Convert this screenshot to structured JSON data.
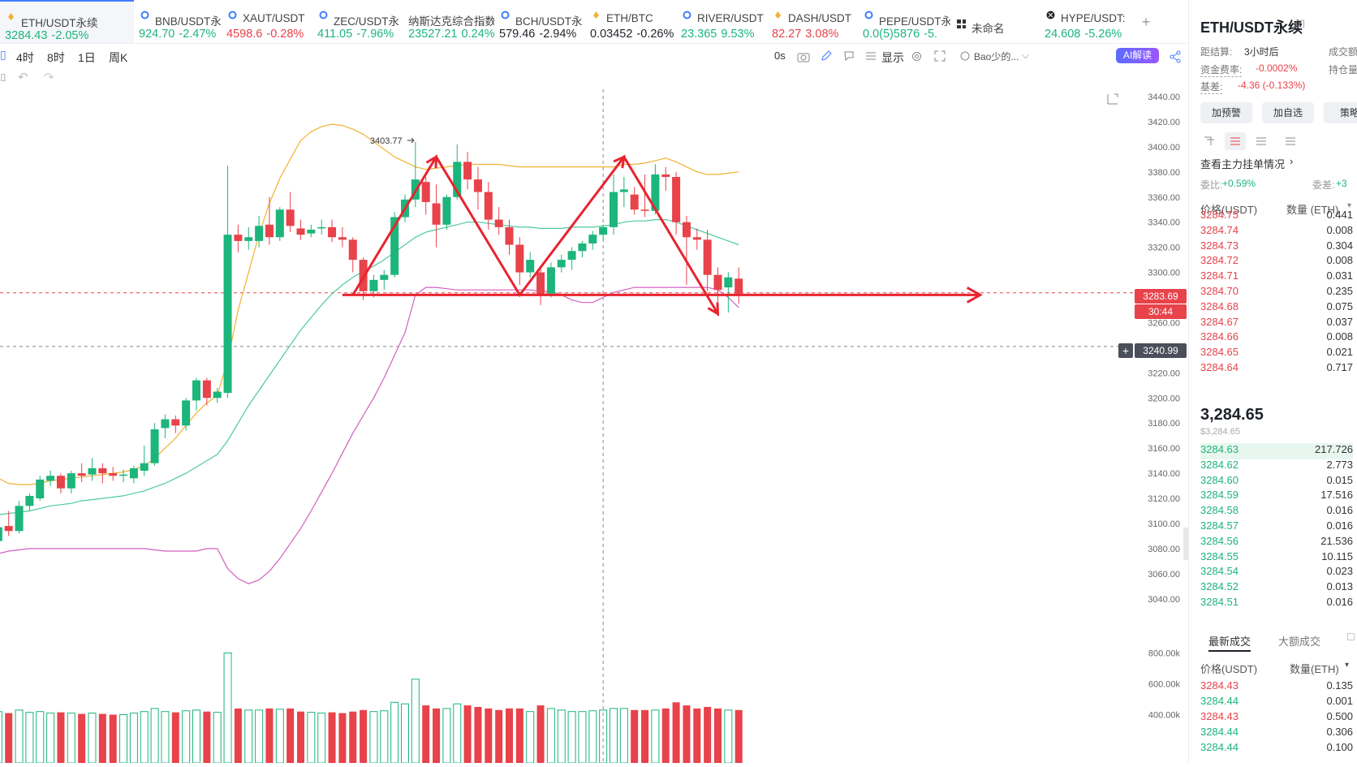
{
  "tabs": [
    {
      "name": "ETH/USDT永续",
      "price": "3284.43",
      "change": "-2.05%",
      "price_color": "green",
      "change_color": "green",
      "icon": "hot-icon",
      "active": true
    },
    {
      "name": "BNB/USDT永",
      "price": "924.70",
      "change": "-2.47%",
      "price_color": "green",
      "change_color": "green",
      "icon": "swap-icon"
    },
    {
      "name": "XAUT/USDT",
      "price": "4598.6",
      "change": "-0.28%",
      "price_color": "red",
      "change_color": "red",
      "icon": "swap-icon"
    },
    {
      "name": "ZEC/USDT永",
      "price": "411.05",
      "change": "-7.96%",
      "price_color": "green",
      "change_color": "green",
      "icon": "swap-icon"
    },
    {
      "name": "纳斯达克综合指数",
      "price": "23527.21",
      "change": "0.24%",
      "price_color": "green",
      "change_color": "green",
      "icon": ""
    },
    {
      "name": "BCH/USDT永",
      "price": "579.46",
      "change": "-2.94%",
      "price_color": "dark",
      "change_color": "dark",
      "icon": "swap-icon"
    },
    {
      "name": "ETH/BTC",
      "price": "0.03452",
      "change": "-0.26%",
      "price_color": "dark",
      "change_color": "dark",
      "icon": "hot-icon"
    },
    {
      "name": "RIVER/USDT",
      "price": "23.365",
      "change": "9.53%",
      "price_color": "green",
      "change_color": "green",
      "icon": "swap-icon"
    },
    {
      "name": "DASH/USDT",
      "price": "82.27",
      "change": "3.08%",
      "price_color": "red",
      "change_color": "red",
      "icon": "hot-icon"
    },
    {
      "name": "PEPE/USDT永",
      "price": "0.0(5)5876",
      "change": "-5.",
      "price_color": "green",
      "change_color": "green",
      "icon": "swap-icon"
    },
    {
      "name": "未命名",
      "price": "",
      "change": "",
      "price_color": "dark",
      "change_color": "dark",
      "icon": "grid-icon"
    },
    {
      "name": "HYPE/USDT:",
      "price": "24.608",
      "change": "-5.26%",
      "price_color": "green",
      "change_color": "green",
      "icon": "hype-icon"
    }
  ],
  "toolbar": {
    "intervals": [
      "4时",
      "8时",
      "1日",
      "周K"
    ],
    "countdown": "0s",
    "display_label": "显示",
    "user_label": "Bao少的...",
    "ai_label": "AI解读"
  },
  "chart_data": {
    "type": "candlestick",
    "y_ticks": [
      "3440.00",
      "3420.00",
      "3400.00",
      "3380.00",
      "3360.00",
      "3340.00",
      "3320.00",
      "3300.00",
      "3280.00",
      "3260.00",
      "3240.00",
      "3220.00",
      "3200.00",
      "3180.00",
      "3160.00",
      "3140.00",
      "3120.00",
      "3100.00",
      "3080.00",
      "3060.00",
      "3040.00"
    ],
    "ylim": [
      3025,
      3440
    ],
    "volume_ticks": [
      "800.00k",
      "600.00k",
      "400.00k"
    ],
    "volume_lim": [
      350,
      850
    ],
    "current_price": "3283.69",
    "countdown": "30:44",
    "crosshair_price": "3240.99",
    "high_label": "3403.77",
    "high_value": 3403.77,
    "neckline_price": 3282,
    "candles": [
      {
        "o": 3100,
        "h": 3112,
        "c": 3088,
        "l": 3082,
        "v": 430
      },
      {
        "o": 3086,
        "h": 3106,
        "c": 3097,
        "l": 3084,
        "v": 420
      },
      {
        "o": 3098,
        "h": 3110,
        "c": 3094,
        "l": 3090,
        "v": 410
      },
      {
        "o": 3094,
        "h": 3118,
        "c": 3114,
        "l": 3092,
        "v": 430
      },
      {
        "o": 3114,
        "h": 3124,
        "c": 3122,
        "l": 3110,
        "v": 415
      },
      {
        "o": 3120,
        "h": 3138,
        "c": 3135,
        "l": 3118,
        "v": 420
      },
      {
        "o": 3134,
        "h": 3142,
        "c": 3138,
        "l": 3130,
        "v": 410
      },
      {
        "o": 3138,
        "h": 3140,
        "c": 3128,
        "l": 3124,
        "v": 415
      },
      {
        "o": 3128,
        "h": 3142,
        "c": 3140,
        "l": 3124,
        "v": 410
      },
      {
        "o": 3140,
        "h": 3148,
        "c": 3138,
        "l": 3133,
        "v": 405
      },
      {
        "o": 3139,
        "h": 3152,
        "c": 3144,
        "l": 3134,
        "v": 410
      },
      {
        "o": 3144,
        "h": 3148,
        "c": 3140,
        "l": 3132,
        "v": 405
      },
      {
        "o": 3140,
        "h": 3145,
        "c": 3138,
        "l": 3134,
        "v": 400
      },
      {
        "o": 3138,
        "h": 3143,
        "c": 3139,
        "l": 3133,
        "v": 400
      },
      {
        "o": 3136,
        "h": 3146,
        "c": 3144,
        "l": 3132,
        "v": 410
      },
      {
        "o": 3142,
        "h": 3162,
        "c": 3148,
        "l": 3138,
        "v": 420
      },
      {
        "o": 3148,
        "h": 3180,
        "c": 3175,
        "l": 3146,
        "v": 440
      },
      {
        "o": 3176,
        "h": 3187,
        "c": 3183,
        "l": 3168,
        "v": 420
      },
      {
        "o": 3183,
        "h": 3186,
        "c": 3178,
        "l": 3172,
        "v": 415
      },
      {
        "o": 3178,
        "h": 3200,
        "c": 3198,
        "l": 3174,
        "v": 425
      },
      {
        "o": 3198,
        "h": 3216,
        "c": 3214,
        "l": 3190,
        "v": 430
      },
      {
        "o": 3214,
        "h": 3216,
        "c": 3200,
        "l": 3194,
        "v": 420
      },
      {
        "o": 3200,
        "h": 3208,
        "c": 3205,
        "l": 3196,
        "v": 415
      },
      {
        "o": 3204,
        "h": 3385,
        "c": 3330,
        "l": 3200,
        "v": 800
      },
      {
        "o": 3330,
        "h": 3338,
        "c": 3325,
        "l": 3316,
        "v": 440
      },
      {
        "o": 3325,
        "h": 3336,
        "c": 3328,
        "l": 3318,
        "v": 430
      },
      {
        "o": 3325,
        "h": 3345,
        "c": 3337,
        "l": 3320,
        "v": 430
      },
      {
        "o": 3338,
        "h": 3360,
        "c": 3328,
        "l": 3322,
        "v": 440
      },
      {
        "o": 3328,
        "h": 3352,
        "c": 3350,
        "l": 3325,
        "v": 435
      },
      {
        "o": 3350,
        "h": 3364,
        "c": 3337,
        "l": 3332,
        "v": 440
      },
      {
        "o": 3335,
        "h": 3342,
        "c": 3330,
        "l": 3326,
        "v": 420
      },
      {
        "o": 3331,
        "h": 3338,
        "c": 3334,
        "l": 3328,
        "v": 415
      },
      {
        "o": 3335,
        "h": 3342,
        "c": 3336,
        "l": 3330,
        "v": 410
      },
      {
        "o": 3336,
        "h": 3342,
        "c": 3328,
        "l": 3324,
        "v": 415
      },
      {
        "o": 3328,
        "h": 3336,
        "c": 3326,
        "l": 3320,
        "v": 410
      },
      {
        "o": 3326,
        "h": 3328,
        "c": 3310,
        "l": 3300,
        "v": 420
      },
      {
        "o": 3310,
        "h": 3312,
        "c": 3285,
        "l": 3278,
        "v": 430
      },
      {
        "o": 3285,
        "h": 3298,
        "c": 3294,
        "l": 3280,
        "v": 420
      },
      {
        "o": 3294,
        "h": 3302,
        "c": 3298,
        "l": 3286,
        "v": 425
      },
      {
        "o": 3298,
        "h": 3348,
        "c": 3344,
        "l": 3296,
        "v": 480
      },
      {
        "o": 3344,
        "h": 3362,
        "c": 3358,
        "l": 3340,
        "v": 470
      },
      {
        "o": 3358,
        "h": 3404,
        "c": 3374,
        "l": 3352,
        "v": 630
      },
      {
        "o": 3372,
        "h": 3376,
        "c": 3356,
        "l": 3346,
        "v": 460
      },
      {
        "o": 3355,
        "h": 3370,
        "c": 3338,
        "l": 3320,
        "v": 440
      },
      {
        "o": 3338,
        "h": 3362,
        "c": 3360,
        "l": 3334,
        "v": 440
      },
      {
        "o": 3360,
        "h": 3402,
        "c": 3388,
        "l": 3358,
        "v": 470
      },
      {
        "o": 3388,
        "h": 3396,
        "c": 3374,
        "l": 3366,
        "v": 460
      },
      {
        "o": 3374,
        "h": 3384,
        "c": 3364,
        "l": 3350,
        "v": 450
      },
      {
        "o": 3364,
        "h": 3372,
        "c": 3342,
        "l": 3334,
        "v": 440
      },
      {
        "o": 3342,
        "h": 3352,
        "c": 3336,
        "l": 3330,
        "v": 430
      },
      {
        "o": 3336,
        "h": 3342,
        "c": 3322,
        "l": 3314,
        "v": 440
      },
      {
        "o": 3322,
        "h": 3328,
        "c": 3300,
        "l": 3290,
        "v": 440
      },
      {
        "o": 3300,
        "h": 3316,
        "c": 3310,
        "l": 3296,
        "v": 420
      },
      {
        "o": 3300,
        "h": 3304,
        "c": 3282,
        "l": 3274,
        "v": 460
      },
      {
        "o": 3283,
        "h": 3308,
        "c": 3304,
        "l": 3280,
        "v": 440
      },
      {
        "o": 3304,
        "h": 3314,
        "c": 3310,
        "l": 3300,
        "v": 430
      },
      {
        "o": 3310,
        "h": 3320,
        "c": 3317,
        "l": 3302,
        "v": 420
      },
      {
        "o": 3317,
        "h": 3325,
        "c": 3323,
        "l": 3312,
        "v": 420
      },
      {
        "o": 3323,
        "h": 3333,
        "c": 3330,
        "l": 3318,
        "v": 425
      },
      {
        "o": 3330,
        "h": 3338,
        "c": 3336,
        "l": 3326,
        "v": 430
      },
      {
        "o": 3336,
        "h": 3378,
        "c": 3364,
        "l": 3330,
        "v": 440
      },
      {
        "o": 3364,
        "h": 3376,
        "c": 3366,
        "l": 3352,
        "v": 440
      },
      {
        "o": 3362,
        "h": 3368,
        "c": 3350,
        "l": 3346,
        "v": 430
      },
      {
        "o": 3350,
        "h": 3378,
        "c": 3349,
        "l": 3344,
        "v": 430
      },
      {
        "o": 3349,
        "h": 3386,
        "c": 3378,
        "l": 3346,
        "v": 430
      },
      {
        "o": 3378,
        "h": 3384,
        "c": 3376,
        "l": 3365,
        "v": 440
      },
      {
        "o": 3376,
        "h": 3380,
        "c": 3340,
        "l": 3330,
        "v": 480
      },
      {
        "o": 3340,
        "h": 3345,
        "c": 3328,
        "l": 3290,
        "v": 460
      },
      {
        "o": 3328,
        "h": 3335,
        "c": 3326,
        "l": 3318,
        "v": 440
      },
      {
        "o": 3326,
        "h": 3334,
        "c": 3298,
        "l": 3285,
        "v": 450
      },
      {
        "o": 3298,
        "h": 3304,
        "c": 3286,
        "l": 3265,
        "v": 440
      },
      {
        "o": 3288,
        "h": 3300,
        "c": 3296,
        "l": 3268,
        "v": 430
      },
      {
        "o": 3295,
        "h": 3304,
        "c": 3283,
        "l": 3275,
        "v": 430
      }
    ],
    "bollinger": {
      "upper": [
        3142,
        3136,
        3132,
        3131,
        3131,
        3132,
        3134,
        3135,
        3136,
        3137,
        3138,
        3139,
        3140,
        3141,
        3143,
        3146,
        3152,
        3160,
        3168,
        3178,
        3188,
        3196,
        3202,
        3230,
        3270,
        3300,
        3330,
        3355,
        3375,
        3390,
        3405,
        3412,
        3416,
        3418,
        3417,
        3414,
        3410,
        3404,
        3398,
        3392,
        3388,
        3384,
        3382,
        3383,
        3384,
        3385,
        3386,
        3386,
        3386,
        3386,
        3385,
        3384,
        3384,
        3384,
        3384,
        3384,
        3384,
        3384,
        3384,
        3384,
        3384,
        3386,
        3386,
        3387,
        3389,
        3391,
        3388,
        3384,
        3380,
        3378,
        3378,
        3379,
        3380
      ],
      "middle": [
        3106,
        3107,
        3108,
        3109,
        3110,
        3112,
        3114,
        3115,
        3116,
        3118,
        3119,
        3120,
        3121,
        3122,
        3124,
        3126,
        3129,
        3132,
        3136,
        3140,
        3145,
        3150,
        3155,
        3166,
        3180,
        3194,
        3206,
        3218,
        3230,
        3242,
        3254,
        3264,
        3274,
        3283,
        3290,
        3296,
        3301,
        3305,
        3310,
        3316,
        3322,
        3328,
        3332,
        3334,
        3336,
        3338,
        3340,
        3340,
        3339,
        3338,
        3337,
        3336,
        3336,
        3335,
        3335,
        3335,
        3336,
        3336,
        3336,
        3337,
        3338,
        3340,
        3341,
        3341,
        3342,
        3342,
        3340,
        3337,
        3334,
        3331,
        3328,
        3325,
        3322
      ],
      "lower": [
        3070,
        3076,
        3078,
        3079,
        3080,
        3080,
        3080,
        3080,
        3080,
        3080,
        3080,
        3080,
        3080,
        3080,
        3080,
        3080,
        3079,
        3078,
        3078,
        3078,
        3078,
        3080,
        3080,
        3064,
        3056,
        3052,
        3055,
        3062,
        3072,
        3084,
        3096,
        3110,
        3125,
        3140,
        3156,
        3172,
        3186,
        3200,
        3216,
        3234,
        3252,
        3282,
        3288,
        3288,
        3287,
        3286,
        3286,
        3286,
        3286,
        3286,
        3286,
        3286,
        3286,
        3285,
        3285,
        3282,
        3278,
        3276,
        3276,
        3280,
        3284,
        3286,
        3288,
        3288,
        3288,
        3288,
        3288,
        3288,
        3288,
        3288,
        3286,
        3280,
        3272
      ]
    },
    "annotations": {
      "zigzag": [
        [
          35,
          3282
        ],
        [
          43,
          3392
        ],
        [
          51,
          3282
        ],
        [
          61,
          3392
        ],
        [
          70,
          3267
        ]
      ],
      "neckline_start_index": 34,
      "neckline_end_index": 95,
      "crosshair_index": 59
    }
  },
  "sidebar": {
    "symbol": "ETH/USDT永续",
    "settlement_label": "距结算:",
    "settlement_value": "3小时后",
    "turnover_label": "成交额",
    "funding_label": "资金费率:",
    "funding_value": "-0.0002%",
    "oi_label": "持仓量",
    "basis_label": "基差:",
    "basis_value": "-4.36 (-0.133%)",
    "buttons": [
      "加预警",
      "加自选",
      "策略"
    ],
    "whale_link": "查看主力挂单情况",
    "ratio_label": "委比:",
    "ratio_value": "+0.59%",
    "diff_label": "委差:",
    "diff_value": "+3",
    "header_price": "价格(USDT)",
    "header_qty": "数量 (ETH)",
    "asks": [
      {
        "p": "3284.75",
        "q": "0.441"
      },
      {
        "p": "3284.74",
        "q": "0.008"
      },
      {
        "p": "3284.73",
        "q": "0.304"
      },
      {
        "p": "3284.72",
        "q": "0.008"
      },
      {
        "p": "3284.71",
        "q": "0.031"
      },
      {
        "p": "3284.70",
        "q": "0.235"
      },
      {
        "p": "3284.68",
        "q": "0.075"
      },
      {
        "p": "3284.67",
        "q": "0.037"
      },
      {
        "p": "3284.66",
        "q": "0.008"
      },
      {
        "p": "3284.65",
        "q": "0.021"
      },
      {
        "p": "3284.64",
        "q": "0.717"
      }
    ],
    "mid_price": "3,284.65",
    "mid_sub": "$3,284.65",
    "bids": [
      {
        "p": "3284.63",
        "q": "217.726"
      },
      {
        "p": "3284.62",
        "q": "2.773"
      },
      {
        "p": "3284.60",
        "q": "0.015"
      },
      {
        "p": "3284.59",
        "q": "17.516"
      },
      {
        "p": "3284.58",
        "q": "0.016"
      },
      {
        "p": "3284.57",
        "q": "0.016"
      },
      {
        "p": "3284.56",
        "q": "21.536"
      },
      {
        "p": "3284.55",
        "q": "10.115"
      },
      {
        "p": "3284.54",
        "q": "0.023"
      },
      {
        "p": "3284.52",
        "q": "0.013"
      },
      {
        "p": "3284.51",
        "q": "0.016"
      }
    ],
    "trade_tabs": [
      "最新成交",
      "大额成交"
    ],
    "trade_header_price": "价格(USDT)",
    "trade_header_qty": "数量(ETH)",
    "trades": [
      {
        "p": "3284.43",
        "q": "0.135",
        "color": "red"
      },
      {
        "p": "3284.44",
        "q": "0.001",
        "color": "green"
      },
      {
        "p": "3284.43",
        "q": "0.500",
        "color": "red"
      },
      {
        "p": "3284.44",
        "q": "0.306",
        "color": "green"
      },
      {
        "p": "3284.44",
        "q": "0.100",
        "color": "green"
      }
    ]
  }
}
